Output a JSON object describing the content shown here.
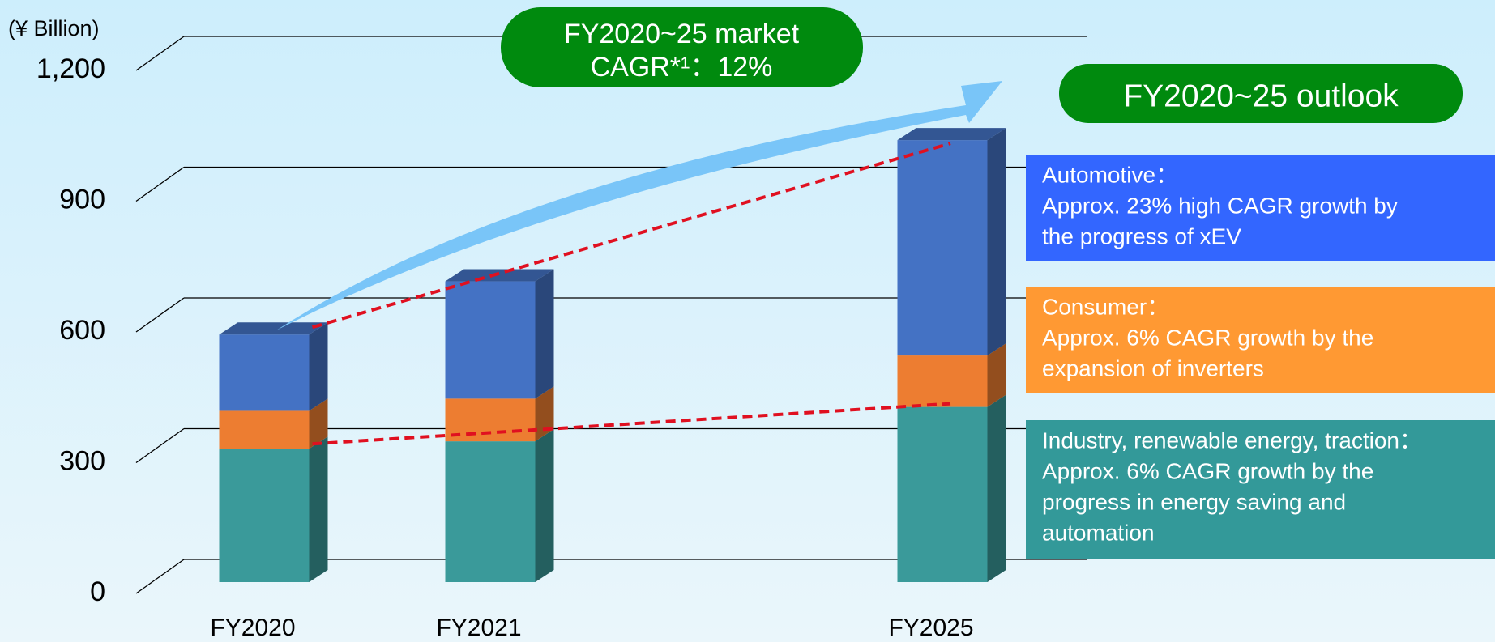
{
  "chart_data": {
    "type": "bar3d_stacked",
    "unit_label": "(¥ Billion)",
    "categories": [
      "FY2020",
      "FY2021",
      null,
      "FY2025"
    ],
    "series": [
      {
        "name": "Industry, renewable energy, traction：",
        "color": "#3a9a9a",
        "box_color": "#339999",
        "description": [
          "Approx. 6% CAGR growth by the",
          "progress in energy saving and",
          "automation"
        ],
        "values": [
          306,
          323,
          null,
          402
        ]
      },
      {
        "name": "Consumer：",
        "color": "#ed7d31",
        "box_color": "#ff9933",
        "description": [
          "Approx. 6% CAGR growth by the",
          "expansion of inverters"
        ],
        "values": [
          87,
          98,
          null,
          118
        ]
      },
      {
        "name": "Automotive：",
        "color": "#4472c4",
        "box_color": "#3366ff",
        "description": [
          "Approx. 23% high CAGR growth by",
          "the progress of xEV"
        ],
        "values": [
          175,
          269,
          null,
          494
        ]
      }
    ],
    "market_badge": [
      "FY2020~25 market",
      "CAGR*¹：12%"
    ],
    "outlook_badge": "FY2020~25 outlook",
    "ylim": [
      0,
      1200
    ],
    "yticks": [
      0,
      300,
      600,
      900,
      {
        "value": 1200,
        "label": "1,200"
      }
    ],
    "grid": true
  }
}
